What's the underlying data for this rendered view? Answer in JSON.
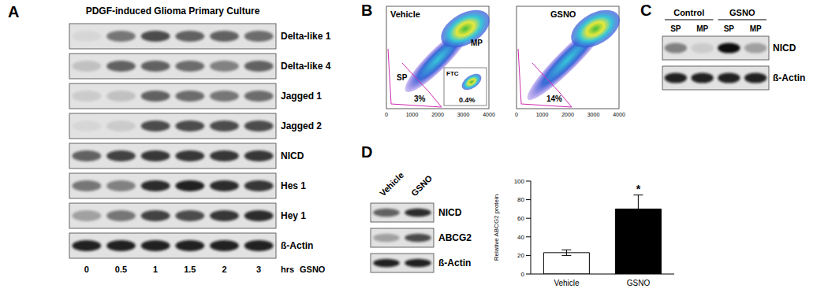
{
  "panels": {
    "A": {
      "letter": "A",
      "title": "PDGF-induced Glioma Primary Culture",
      "rows": [
        {
          "label": "Delta-like 1",
          "intensity": [
            0.05,
            0.5,
            0.7,
            0.6,
            0.6,
            0.55
          ]
        },
        {
          "label": "Delta-like 4",
          "intensity": [
            0.15,
            0.6,
            0.6,
            0.55,
            0.45,
            0.6
          ]
        },
        {
          "label": "Jagged 1",
          "intensity": [
            0.1,
            0.15,
            0.6,
            0.55,
            0.5,
            0.55
          ]
        },
        {
          "label": "Jagged 2",
          "intensity": [
            0.05,
            0.1,
            0.7,
            0.7,
            0.7,
            0.7
          ]
        },
        {
          "label": "NICD",
          "intensity": [
            0.6,
            0.75,
            0.8,
            0.8,
            0.8,
            0.8
          ]
        },
        {
          "label": "Hes 1",
          "intensity": [
            0.5,
            0.45,
            0.85,
            0.9,
            0.85,
            0.8
          ]
        },
        {
          "label": "Hey 1",
          "intensity": [
            0.3,
            0.5,
            0.75,
            0.7,
            0.8,
            0.85
          ]
        },
        {
          "label": "ß-Actin",
          "intensity": [
            0.9,
            0.9,
            0.9,
            0.9,
            0.9,
            0.9
          ]
        }
      ],
      "lanes": [
        0,
        0.5,
        1,
        1.5,
        2,
        3
      ],
      "lane_unit": "hrs",
      "treatment": "GSNO"
    },
    "B": {
      "letter": "B",
      "plots": [
        {
          "title": "Vehicle",
          "gate_label": "SP",
          "population_label": "MP",
          "gate_percent": "3%",
          "inset": {
            "title": "FTC",
            "percent": "0.4%"
          }
        },
        {
          "title": "GSNO",
          "gate_percent": "14%"
        }
      ],
      "xticks": [
        0,
        1000,
        2000,
        3000,
        4000
      ]
    },
    "C": {
      "letter": "C",
      "groups": [
        "Control",
        "GSNO"
      ],
      "lanes": [
        "SP",
        "MP",
        "SP",
        "MP"
      ],
      "rows": [
        {
          "label": "NICD",
          "intensity": [
            0.45,
            0.1,
            1,
            0.3
          ]
        },
        {
          "label": "ß-Actin",
          "intensity": [
            0.9,
            0.9,
            0.9,
            0.9
          ]
        }
      ]
    },
    "D": {
      "letter": "D",
      "lanes": [
        "Vehicle",
        "GSNO"
      ],
      "rows": [
        {
          "label": "NICD",
          "intensity": [
            0.6,
            0.85
          ]
        },
        {
          "label": "ABCG2",
          "intensity": [
            0.3,
            0.7
          ]
        },
        {
          "label": "ß-Actin",
          "intensity": [
            0.9,
            0.9
          ]
        }
      ]
    }
  },
  "chart_data": {
    "type": "bar",
    "categories": [
      "Vehicle",
      "GSNO"
    ],
    "values": [
      23,
      70
    ],
    "errors": [
      3,
      15
    ],
    "colors": [
      "#ffffff",
      "#000000"
    ],
    "ylabel": "Relative ABCG2 protein",
    "ylim": [
      0,
      100
    ],
    "yticks": [
      0,
      20,
      40,
      60,
      80,
      100
    ],
    "annotations": [
      null,
      "*"
    ]
  }
}
